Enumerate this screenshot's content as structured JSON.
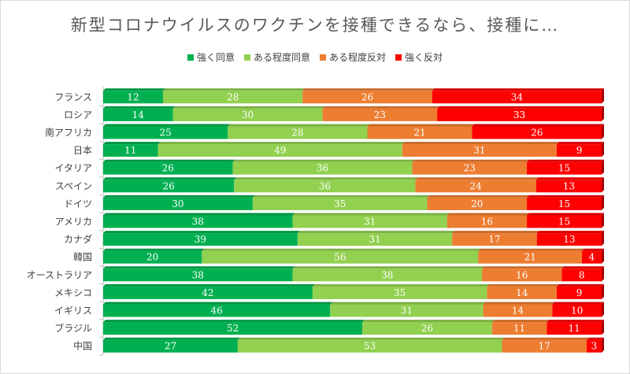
{
  "chart_data": {
    "type": "bar",
    "orientation": "horizontal",
    "stacked": "percent",
    "title": "新型コロナウイルスのワクチンを接種できるなら、接種に…",
    "categories": [
      "フランス",
      "ロシア",
      "南アフリカ",
      "日本",
      "イタリア",
      "スペイン",
      "ドイツ",
      "アメリカ",
      "カナダ",
      "韓国",
      "オーストラリア",
      "メキシコ",
      "イギリス",
      "ブラジル",
      "中国"
    ],
    "series": [
      {
        "name": "強く同意",
        "color": "#00b050",
        "values": [
          12,
          14,
          25,
          11,
          26,
          26,
          30,
          38,
          39,
          20,
          38,
          42,
          46,
          52,
          27
        ]
      },
      {
        "name": "ある程度同意",
        "color": "#92d050",
        "values": [
          28,
          30,
          28,
          49,
          36,
          36,
          35,
          31,
          31,
          56,
          38,
          35,
          31,
          26,
          53
        ]
      },
      {
        "name": "ある程度反対",
        "color": "#ed7d31",
        "values": [
          26,
          23,
          21,
          31,
          23,
          24,
          20,
          16,
          17,
          21,
          16,
          14,
          14,
          11,
          17
        ]
      },
      {
        "name": "強く反対",
        "color": "#ff0000",
        "values": [
          34,
          33,
          26,
          9,
          15,
          13,
          15,
          15,
          13,
          4,
          8,
          9,
          10,
          11,
          3
        ]
      }
    ],
    "legend_position": "top",
    "xlabel": "",
    "ylabel": ""
  }
}
